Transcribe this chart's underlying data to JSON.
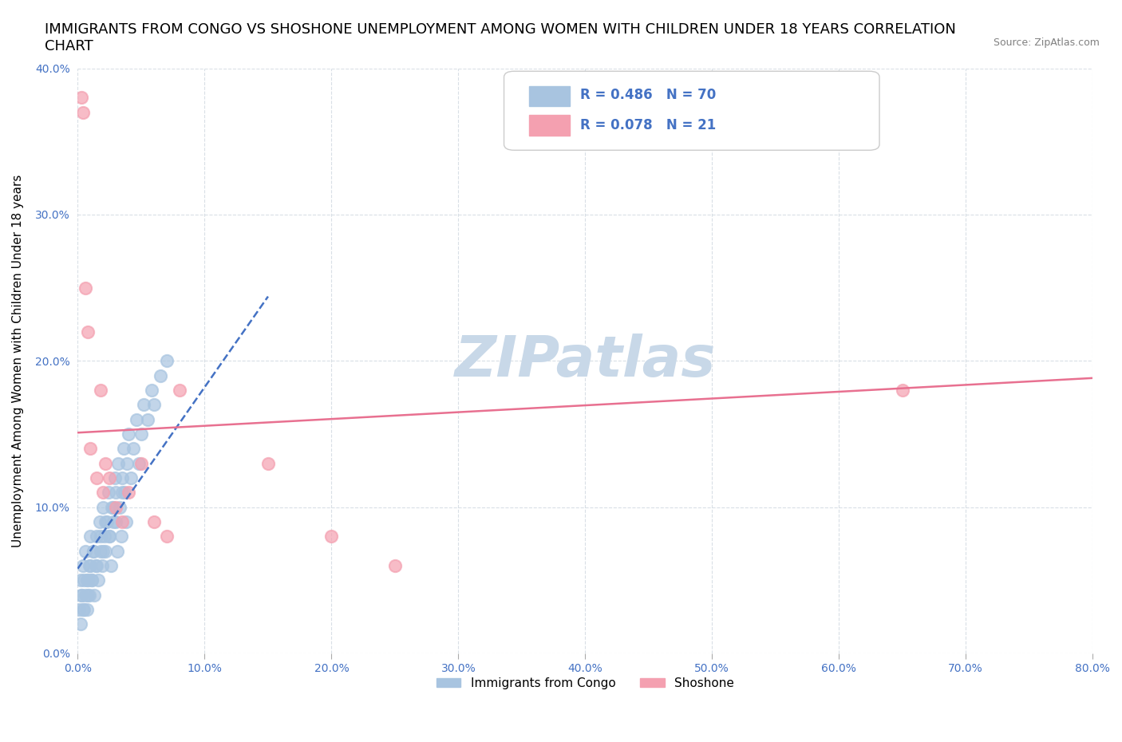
{
  "title": "IMMIGRANTS FROM CONGO VS SHOSHONE UNEMPLOYMENT AMONG WOMEN WITH CHILDREN UNDER 18 YEARS CORRELATION\nCHART",
  "source_text": "Source: ZipAtlas.com",
  "xlabel": "",
  "ylabel": "Unemployment Among Women with Children Under 18 years",
  "xlim": [
    0.0,
    0.8
  ],
  "ylim": [
    0.0,
    0.4
  ],
  "xticks": [
    0.0,
    0.1,
    0.2,
    0.3,
    0.4,
    0.5,
    0.6,
    0.7,
    0.8
  ],
  "yticks": [
    0.0,
    0.1,
    0.2,
    0.3,
    0.4
  ],
  "xtick_labels": [
    "0.0%",
    "10.0%",
    "20.0%",
    "30.0%",
    "40.0%",
    "50.0%",
    "60.0%",
    "70.0%",
    "80.0%"
  ],
  "ytick_labels": [
    "0.0%",
    "10.0%",
    "20.0%",
    "30.0%",
    "40.0%"
  ],
  "congo_R": 0.486,
  "congo_N": 70,
  "shoshone_R": 0.078,
  "shoshone_N": 21,
  "congo_color": "#a8c4e0",
  "shoshone_color": "#f4a0b0",
  "congo_trend_color": "#4472c4",
  "shoshone_trend_color": "#e87090",
  "watermark": "ZIPatlas",
  "watermark_color": "#c8d8e8",
  "legend_label_congo": "Immigrants from Congo",
  "legend_label_shoshone": "Shoshone",
  "background_color": "#ffffff",
  "grid_color": "#d0d8e0",
  "title_fontsize": 13,
  "axis_label_fontsize": 11,
  "tick_fontsize": 10,
  "congo_x": [
    0.002,
    0.003,
    0.004,
    0.005,
    0.006,
    0.007,
    0.008,
    0.009,
    0.01,
    0.011,
    0.012,
    0.013,
    0.014,
    0.015,
    0.016,
    0.017,
    0.018,
    0.019,
    0.02,
    0.021,
    0.022,
    0.023,
    0.024,
    0.025,
    0.026,
    0.027,
    0.028,
    0.029,
    0.03,
    0.031,
    0.032,
    0.033,
    0.034,
    0.035,
    0.036,
    0.037,
    0.038,
    0.039,
    0.04,
    0.042,
    0.044,
    0.046,
    0.048,
    0.05,
    0.052,
    0.055,
    0.058,
    0.06,
    0.065,
    0.07,
    0.001,
    0.002,
    0.003,
    0.004,
    0.005,
    0.006,
    0.007,
    0.008,
    0.009,
    0.01,
    0.011,
    0.012,
    0.015,
    0.018,
    0.02,
    0.022,
    0.025,
    0.028,
    0.03,
    0.035
  ],
  "congo_y": [
    0.05,
    0.04,
    0.06,
    0.03,
    0.07,
    0.05,
    0.04,
    0.06,
    0.08,
    0.05,
    0.07,
    0.04,
    0.06,
    0.08,
    0.05,
    0.09,
    0.07,
    0.06,
    0.1,
    0.08,
    0.07,
    0.09,
    0.11,
    0.08,
    0.06,
    0.1,
    0.09,
    0.12,
    0.11,
    0.07,
    0.13,
    0.1,
    0.08,
    0.12,
    0.14,
    0.11,
    0.09,
    0.13,
    0.15,
    0.12,
    0.14,
    0.16,
    0.13,
    0.15,
    0.17,
    0.16,
    0.18,
    0.17,
    0.19,
    0.2,
    0.03,
    0.02,
    0.04,
    0.03,
    0.05,
    0.04,
    0.03,
    0.05,
    0.04,
    0.06,
    0.05,
    0.07,
    0.06,
    0.08,
    0.07,
    0.09,
    0.08,
    0.1,
    0.09,
    0.11
  ],
  "shoshone_x": [
    0.003,
    0.004,
    0.006,
    0.008,
    0.01,
    0.015,
    0.018,
    0.02,
    0.022,
    0.025,
    0.03,
    0.035,
    0.04,
    0.05,
    0.06,
    0.07,
    0.08,
    0.15,
    0.2,
    0.25,
    0.65
  ],
  "shoshone_y": [
    0.38,
    0.37,
    0.25,
    0.22,
    0.14,
    0.12,
    0.18,
    0.11,
    0.13,
    0.12,
    0.1,
    0.09,
    0.11,
    0.13,
    0.09,
    0.08,
    0.18,
    0.13,
    0.08,
    0.06,
    0.18
  ]
}
